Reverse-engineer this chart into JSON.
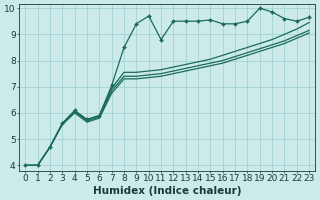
{
  "xlabel": "Humidex (Indice chaleur)",
  "bg_color": "#cceaea",
  "line_color": "#1a6b5a",
  "xlim": [
    -0.5,
    23.5
  ],
  "ylim": [
    3.8,
    10.15
  ],
  "yticks": [
    4,
    5,
    6,
    7,
    8,
    9,
    10
  ],
  "xticks": [
    0,
    1,
    2,
    3,
    4,
    5,
    6,
    7,
    8,
    9,
    10,
    11,
    12,
    13,
    14,
    15,
    16,
    17,
    18,
    19,
    20,
    21,
    22,
    23
  ],
  "x": [
    0,
    1,
    2,
    3,
    4,
    5,
    6,
    7,
    8,
    9,
    10,
    11,
    12,
    13,
    14,
    15,
    16,
    17,
    18,
    19,
    20,
    21,
    22,
    23
  ],
  "series1": [
    4.0,
    4.0,
    4.7,
    5.6,
    6.1,
    5.75,
    5.9,
    7.05,
    8.5,
    9.4,
    9.7,
    8.8,
    9.5,
    9.5,
    9.5,
    9.55,
    9.4,
    9.4,
    9.5,
    10.0,
    9.85,
    9.6,
    9.5,
    9.65
  ],
  "series2": [
    4.0,
    4.0,
    4.7,
    5.6,
    6.05,
    5.75,
    5.9,
    6.95,
    7.55,
    7.55,
    7.6,
    7.65,
    7.75,
    7.85,
    7.95,
    8.05,
    8.2,
    8.35,
    8.5,
    8.65,
    8.8,
    9.0,
    9.2,
    9.45
  ],
  "series3": [
    4.0,
    4.0,
    4.7,
    5.6,
    6.05,
    5.7,
    5.85,
    6.85,
    7.4,
    7.4,
    7.45,
    7.5,
    7.6,
    7.7,
    7.8,
    7.9,
    8.0,
    8.15,
    8.3,
    8.45,
    8.6,
    8.75,
    8.95,
    9.15
  ],
  "series4": [
    4.0,
    4.0,
    4.7,
    5.55,
    6.0,
    5.65,
    5.8,
    6.75,
    7.3,
    7.3,
    7.35,
    7.4,
    7.5,
    7.6,
    7.7,
    7.8,
    7.9,
    8.05,
    8.2,
    8.35,
    8.5,
    8.65,
    8.85,
    9.05
  ],
  "grid_color": "#9ecece",
  "marker": "D",
  "markersize": 2.0,
  "linewidth": 0.9,
  "font_color": "#1a3a3a",
  "xlabel_fontsize": 7.5,
  "tick_fontsize": 6.5
}
